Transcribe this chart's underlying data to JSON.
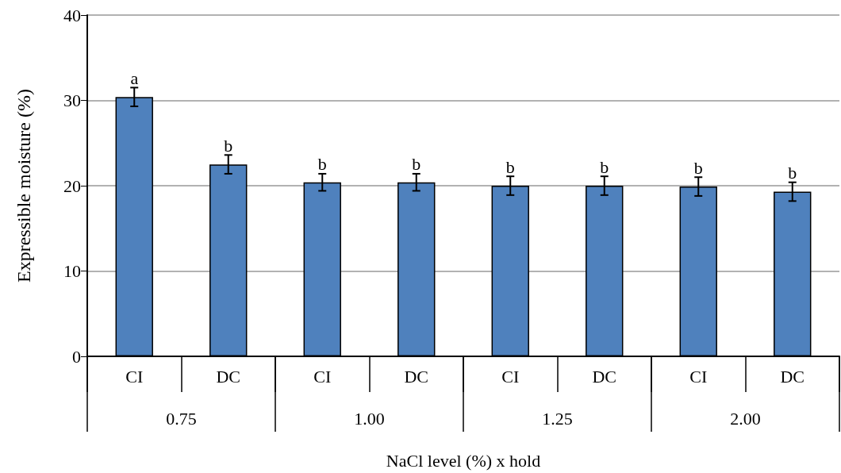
{
  "chart_data": {
    "type": "bar",
    "ylabel": "Expressible moisture (%)",
    "xlabel": "NaCl level (%) x hold",
    "categories": [
      "CI",
      "DC",
      "CI",
      "DC",
      "CI",
      "DC",
      "CI",
      "DC"
    ],
    "annotations": [
      "0.75",
      "1.00",
      "1.25",
      "2.00"
    ],
    "series": [
      {
        "color": "#4f81bd",
        "values": [
          30.4,
          22.5,
          20.4,
          20.4,
          20.0,
          20.0,
          19.9,
          19.3
        ],
        "errors": [
          1.1,
          1.1,
          1.0,
          1.0,
          1.1,
          1.1,
          1.1,
          1.1
        ],
        "value_labels": [
          "a",
          "b",
          "b",
          "b",
          "b",
          "b",
          "b",
          "b"
        ]
      }
    ],
    "ylim": [
      0,
      40
    ],
    "yticks": [
      0,
      10,
      20,
      30,
      40
    ],
    "grid": "y"
  }
}
